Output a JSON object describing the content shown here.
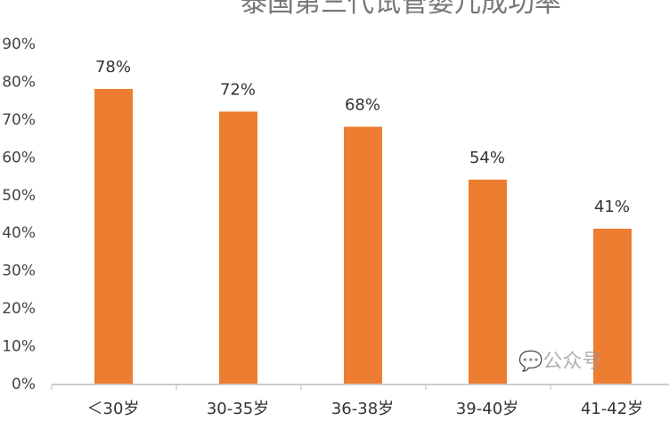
{
  "chart_data": {
    "type": "bar",
    "title": "泰国第三代试管婴儿成功率",
    "categories": [
      "＜30岁",
      "30-35岁",
      "36-38岁",
      "39-40岁",
      "41-42岁"
    ],
    "values": [
      78,
      72,
      68,
      54,
      41
    ],
    "data_labels": [
      "78%",
      "72%",
      "68%",
      "54%",
      "41%"
    ],
    "ylim": [
      0,
      90
    ],
    "yticks": [
      "0%",
      "10%",
      "20%",
      "30%",
      "40%",
      "50%",
      "60%",
      "70%",
      "80%",
      "90%"
    ],
    "grid": false,
    "bar_color": "#ED7D31"
  },
  "watermark": "公众号"
}
